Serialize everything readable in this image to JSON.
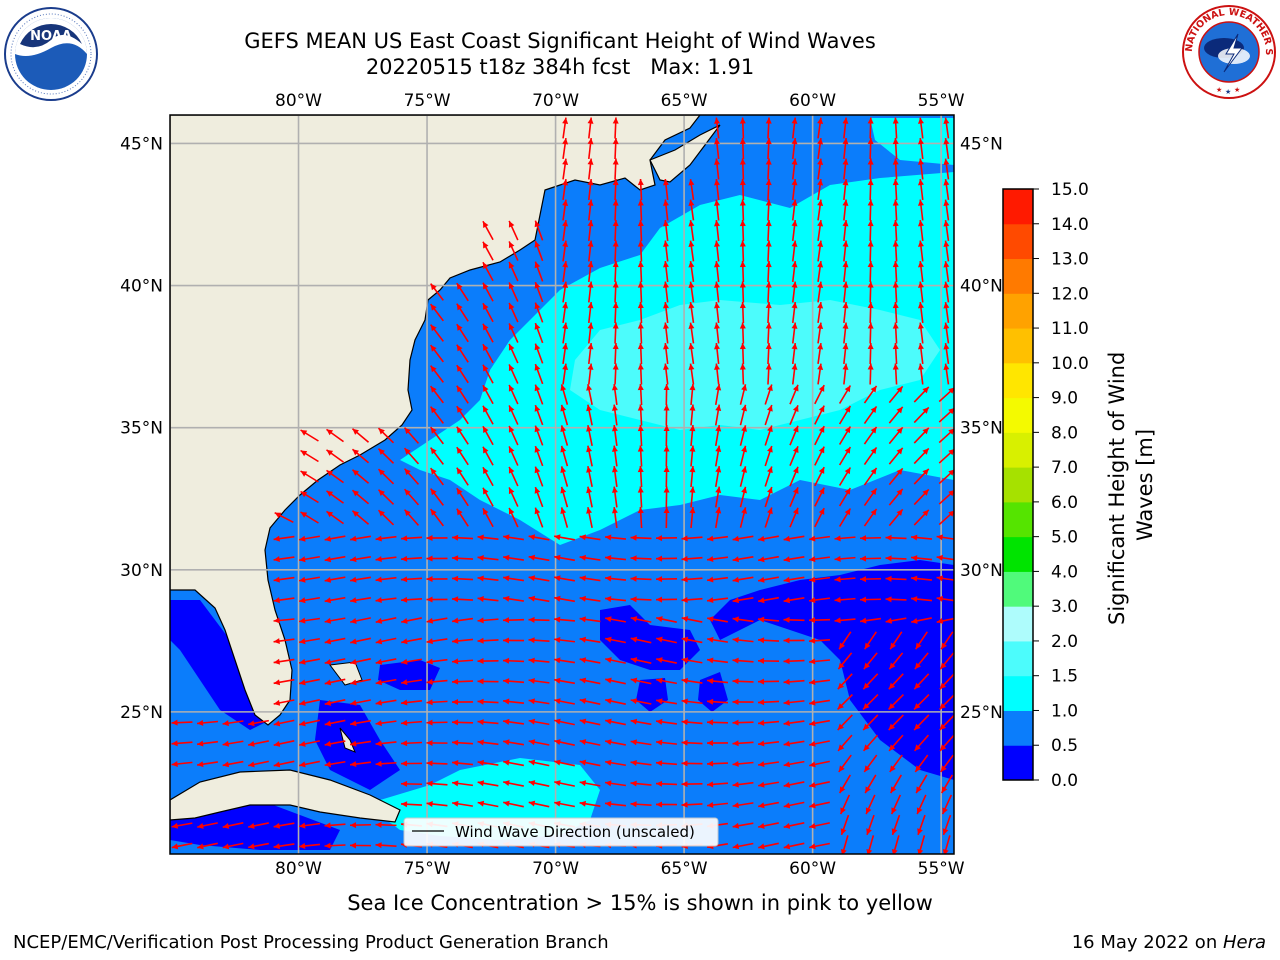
{
  "title": {
    "line1": "GEFS MEAN US East Coast Significant Height of Wind Waves",
    "date_run": "20220515 t18z 384h fcst",
    "max_label": "Max: 1.91"
  },
  "map": {
    "lon_ticks": [
      "80°W",
      "75°W",
      "70°W",
      "65°W",
      "60°W",
      "55°W"
    ],
    "lat_ticks": [
      "45°N",
      "40°N",
      "35°N",
      "30°N",
      "25°N"
    ],
    "lon_range": [
      -85,
      -54.5
    ],
    "lat_range": [
      20,
      46
    ],
    "legend_label": "Wind Wave Direction (unscaled)",
    "arrow_color": "#ff0000",
    "land_color": "#efedde"
  },
  "colorbar": {
    "label_line1": "Significant Height of Wind",
    "label_line2": "Waves [m]",
    "ticks": [
      "0.0",
      "0.5",
      "1.0",
      "1.5",
      "2.0",
      "3.0",
      "4.0",
      "5.0",
      "6.0",
      "7.0",
      "8.0",
      "9.0",
      "10.0",
      "11.0",
      "12.0",
      "13.0",
      "14.0",
      "15.0"
    ],
    "colors": [
      "#0000ff",
      "#0b7dfb",
      "#00ffff",
      "#4cfcfc",
      "#aefcfc",
      "#50fa7b",
      "#00e400",
      "#55e400",
      "#a6e100",
      "#d8f000",
      "#f4fa00",
      "#ffe600",
      "#ffc000",
      "#ffa200",
      "#ff7a00",
      "#ff4a00",
      "#ff1a00"
    ]
  },
  "logos": {
    "noaa_text": "NOAA",
    "nws_text": "NATIONAL WEATHER SERVICE"
  },
  "footer": {
    "sea_ice_note": "Sea Ice Concentration > 15% is shown in pink to yellow",
    "left": "NCEP/EMC/Verification Post Processing Product Generation Branch",
    "date": "16 May 2022 on ",
    "host": "Hera"
  }
}
